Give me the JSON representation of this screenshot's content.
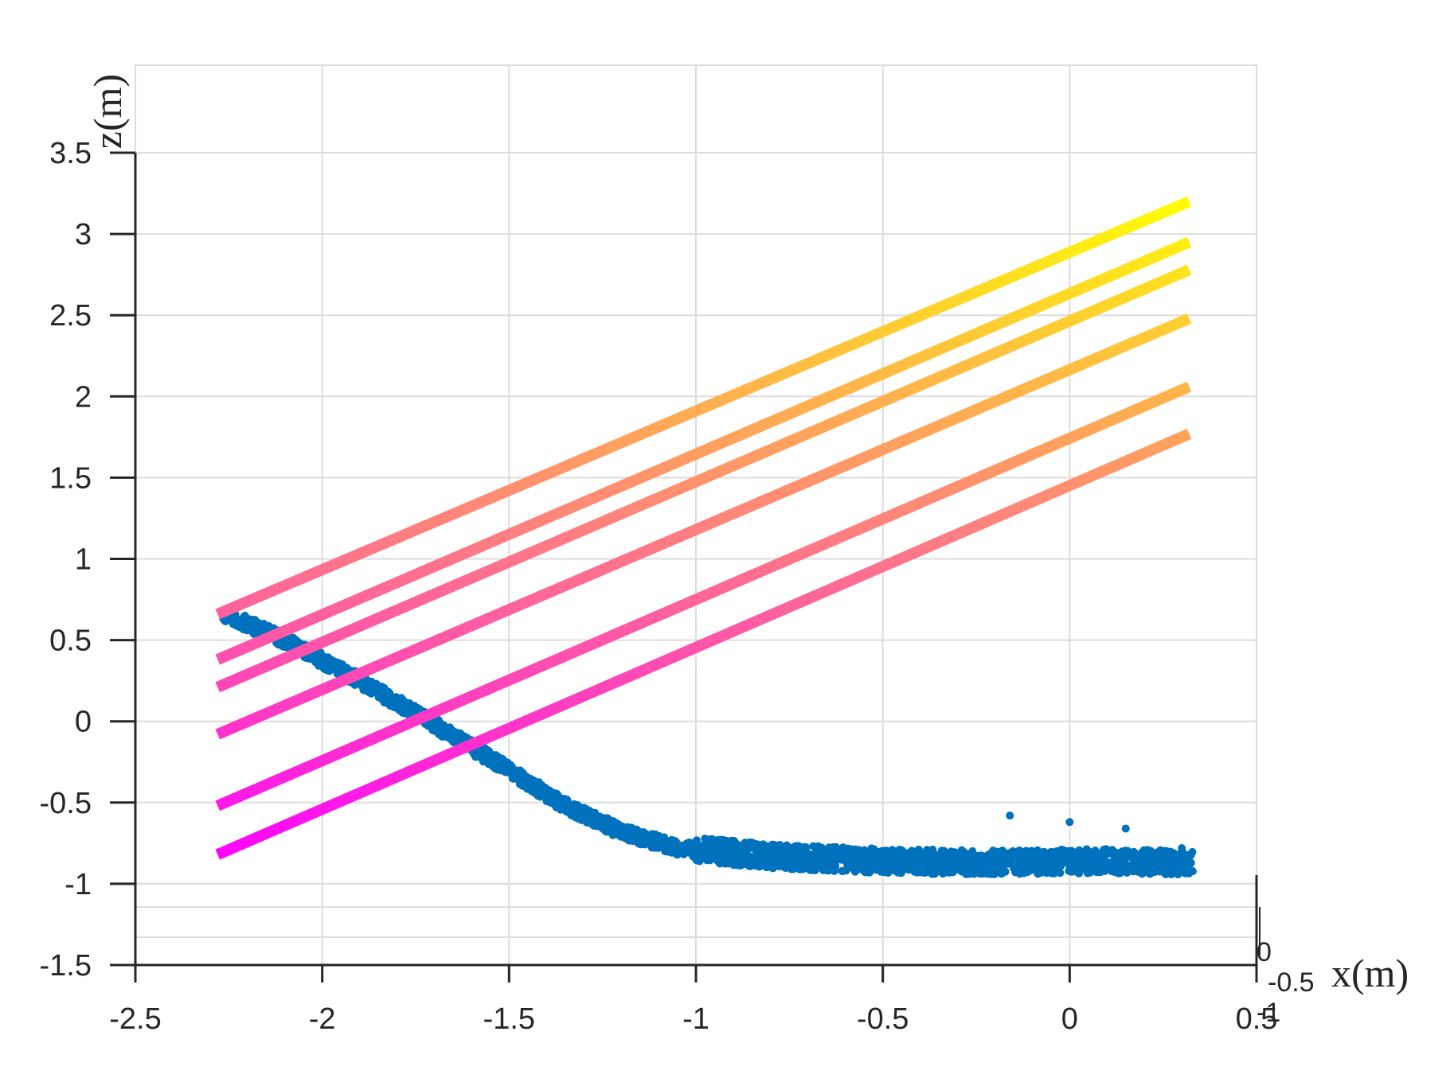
{
  "chart_data": {
    "type": "scatter",
    "xlabel": "x(m)",
    "ylabel": "z(m)",
    "xlim": [
      -2.5,
      0.5
    ],
    "ylim": [
      -1.5,
      3.5
    ],
    "grid": true,
    "x_ticks": [
      "-2.5",
      "-2",
      "-1.5",
      "-1",
      "-0.5",
      "0",
      "0.5"
    ],
    "y_ticks": [
      "-1.5",
      "-1",
      "-0.5",
      "0",
      "0.5",
      "1",
      "1.5",
      "2",
      "2.5",
      "3",
      "3.5"
    ],
    "depth_ticks": [
      "0",
      "-0.5",
      "-1"
    ],
    "colors": {
      "points": "#0072BD",
      "line_low": "#ff00ff",
      "line_high": "#ffff00",
      "grid": "#dcdcdc",
      "axis": "#262626"
    },
    "lines": [
      {
        "x": [
          -2.28,
          0.32
        ],
        "z": [
          -0.82,
          1.77
        ]
      },
      {
        "x": [
          -2.28,
          0.32
        ],
        "z": [
          -0.52,
          2.06
        ]
      },
      {
        "x": [
          -2.28,
          0.32
        ],
        "z": [
          -0.08,
          2.48
        ]
      },
      {
        "x": [
          -2.28,
          0.32
        ],
        "z": [
          0.21,
          2.78
        ]
      },
      {
        "x": [
          -2.28,
          0.32
        ],
        "z": [
          0.38,
          2.95
        ]
      },
      {
        "x": [
          -2.28,
          0.32
        ],
        "z": [
          0.66,
          3.2
        ]
      }
    ],
    "point_cloud_profile": [
      {
        "x": -2.27,
        "z": 0.67
      },
      {
        "x": -2.1,
        "z": 0.5
      },
      {
        "x": -1.9,
        "z": 0.25
      },
      {
        "x": -1.7,
        "z": -0.02
      },
      {
        "x": -1.5,
        "z": -0.3
      },
      {
        "x": -1.35,
        "z": -0.52
      },
      {
        "x": -1.2,
        "z": -0.68
      },
      {
        "x": -1.05,
        "z": -0.78
      },
      {
        "x": -0.8,
        "z": -0.83
      },
      {
        "x": -0.5,
        "z": -0.86
      },
      {
        "x": -0.2,
        "z": -0.87
      },
      {
        "x": 0.1,
        "z": -0.86
      },
      {
        "x": 0.33,
        "z": -0.87
      }
    ]
  }
}
